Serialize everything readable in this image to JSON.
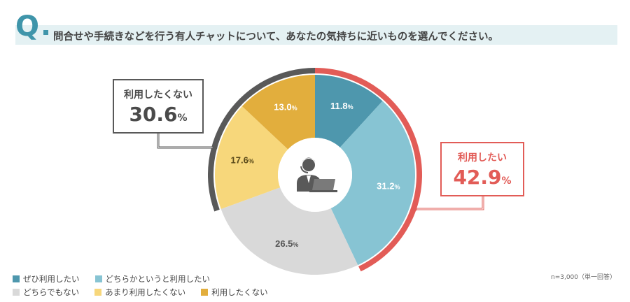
{
  "header": {
    "q_mark": "Q",
    "question": "問合せや手続きなどを行う有人チャットについて、あなたの気持ちに近いものを選んでください。"
  },
  "chart_data": {
    "type": "pie",
    "subtype": "donut",
    "categories": [
      "ぜひ利用したい",
      "どちらかというと利用したい",
      "どちらでもない",
      "あまり利用したくない",
      "利用したくない"
    ],
    "values": [
      11.8,
      31.2,
      26.5,
      17.6,
      13.0
    ],
    "colors": [
      "#4e97ad",
      "#87c4d3",
      "#d9d9d9",
      "#f7d77b",
      "#e2ae3d"
    ],
    "label_colors": [
      "#ffffff",
      "#ffffff",
      "#555555",
      "#5a4a1a",
      "#ffffff"
    ],
    "unit": "%",
    "center_icon": "operator-person-icon",
    "legend_position": "bottom-left",
    "groups": [
      {
        "label": "利用したい",
        "value": 42.9,
        "unit": "%",
        "color": "#e25c57",
        "members": [
          0,
          1
        ]
      },
      {
        "label": "利用したくない",
        "value": 30.6,
        "unit": "%",
        "color": "#595959",
        "members": [
          3,
          4
        ]
      }
    ]
  },
  "note": "n=3,000（単一回答）"
}
